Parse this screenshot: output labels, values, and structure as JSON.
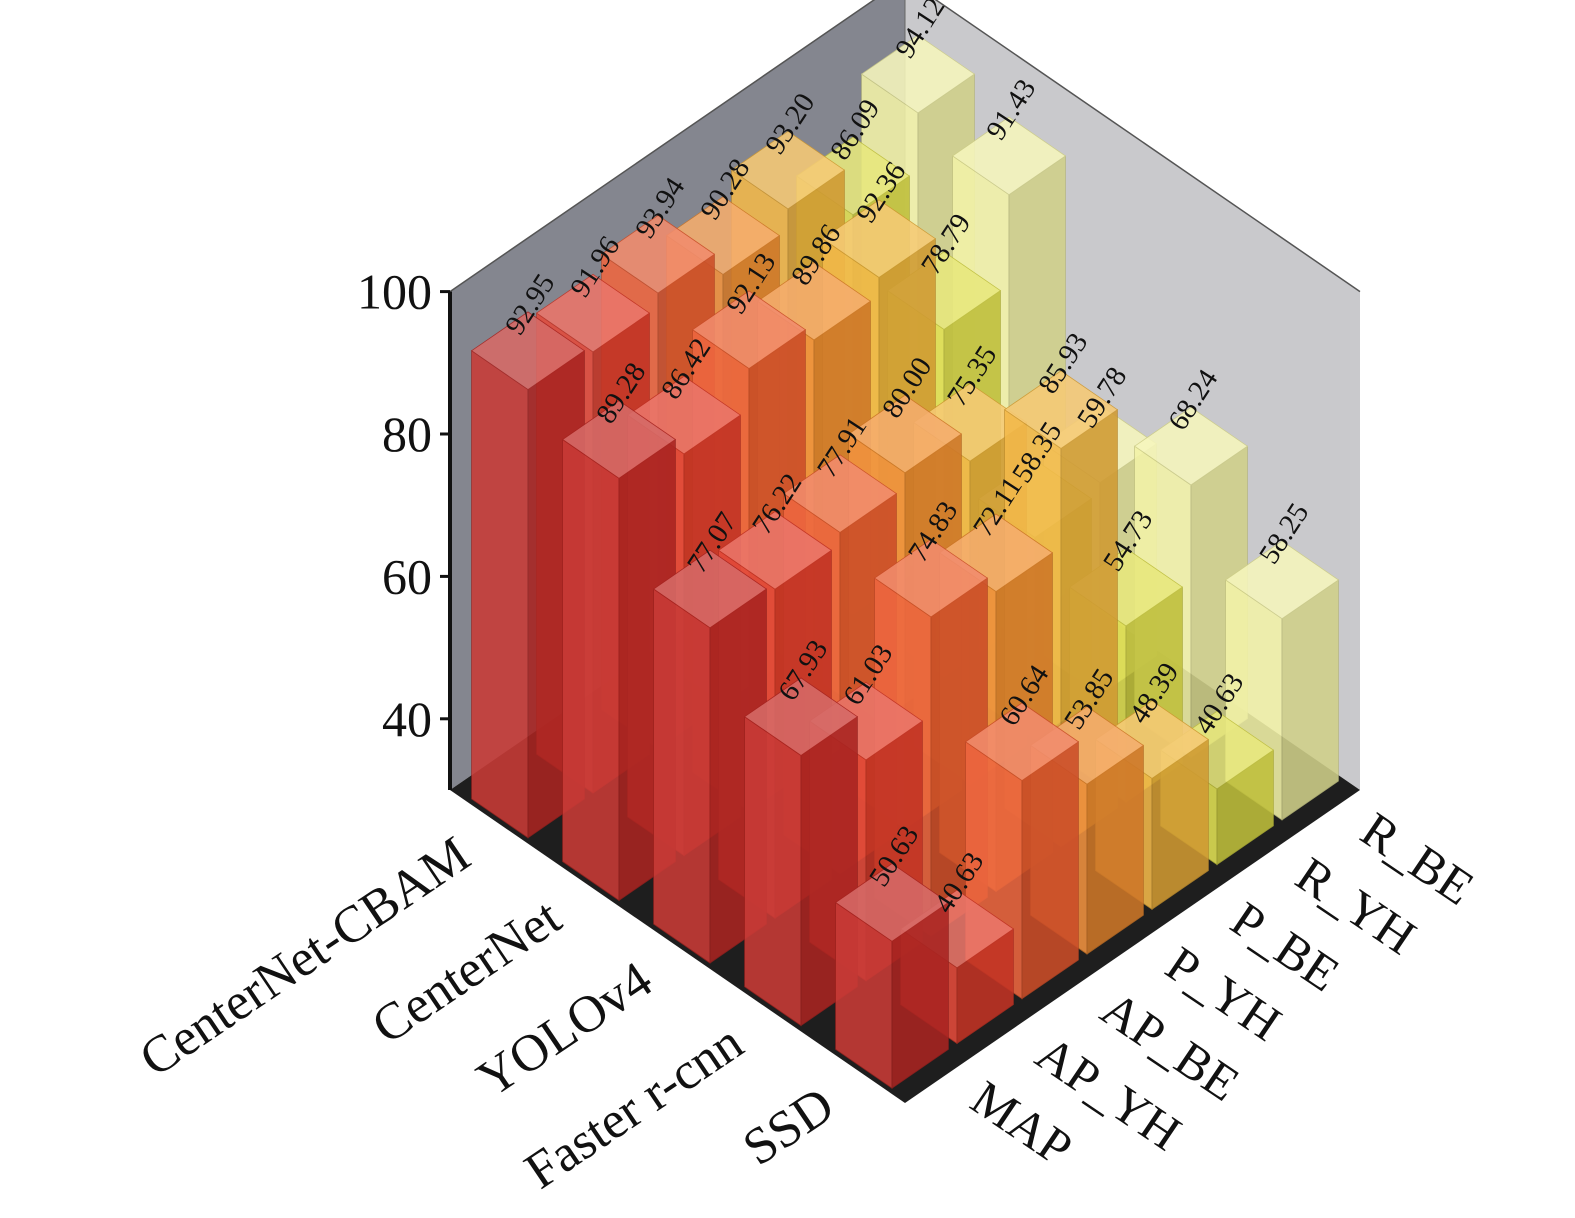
{
  "chart_data": {
    "type": "bar",
    "categories": [
      "CenterNet-CBAM",
      "CenterNet",
      "YOLOv4",
      "Faster r-cnn",
      "SSD"
    ],
    "series": [
      {
        "name": "R_BE",
        "values": [
          94.12,
          91.43,
          59.78,
          68.24,
          58.25
        ]
      },
      {
        "name": "R_YH",
        "values": [
          86.09,
          78.79,
          58.35,
          54.73,
          40.63
        ]
      },
      {
        "name": "P_BE",
        "values": [
          93.2,
          92.36,
          75.35,
          85.93,
          48.39
        ]
      },
      {
        "name": "P_YH",
        "values": [
          90.28,
          89.86,
          80.0,
          72.11,
          53.85
        ]
      },
      {
        "name": "AP_BE",
        "values": [
          93.94,
          92.13,
          77.91,
          74.83,
          60.64
        ]
      },
      {
        "name": "AP_YH",
        "values": [
          91.96,
          86.42,
          76.22,
          61.03,
          40.63
        ]
      },
      {
        "name": "MAP",
        "values": [
          92.95,
          89.28,
          77.07,
          67.93,
          50.63
        ]
      }
    ],
    "z_ticks": [
      "40",
      "60",
      "80",
      "100"
    ],
    "z_range": [
      30,
      100
    ],
    "colors": [
      "#f2f2a0",
      "#dede45",
      "#f2b33a",
      "#f08a2e",
      "#ec5a2f",
      "#e23b2a",
      "#c42a26"
    ],
    "title": "",
    "xlabel": "",
    "ylabel": ""
  }
}
